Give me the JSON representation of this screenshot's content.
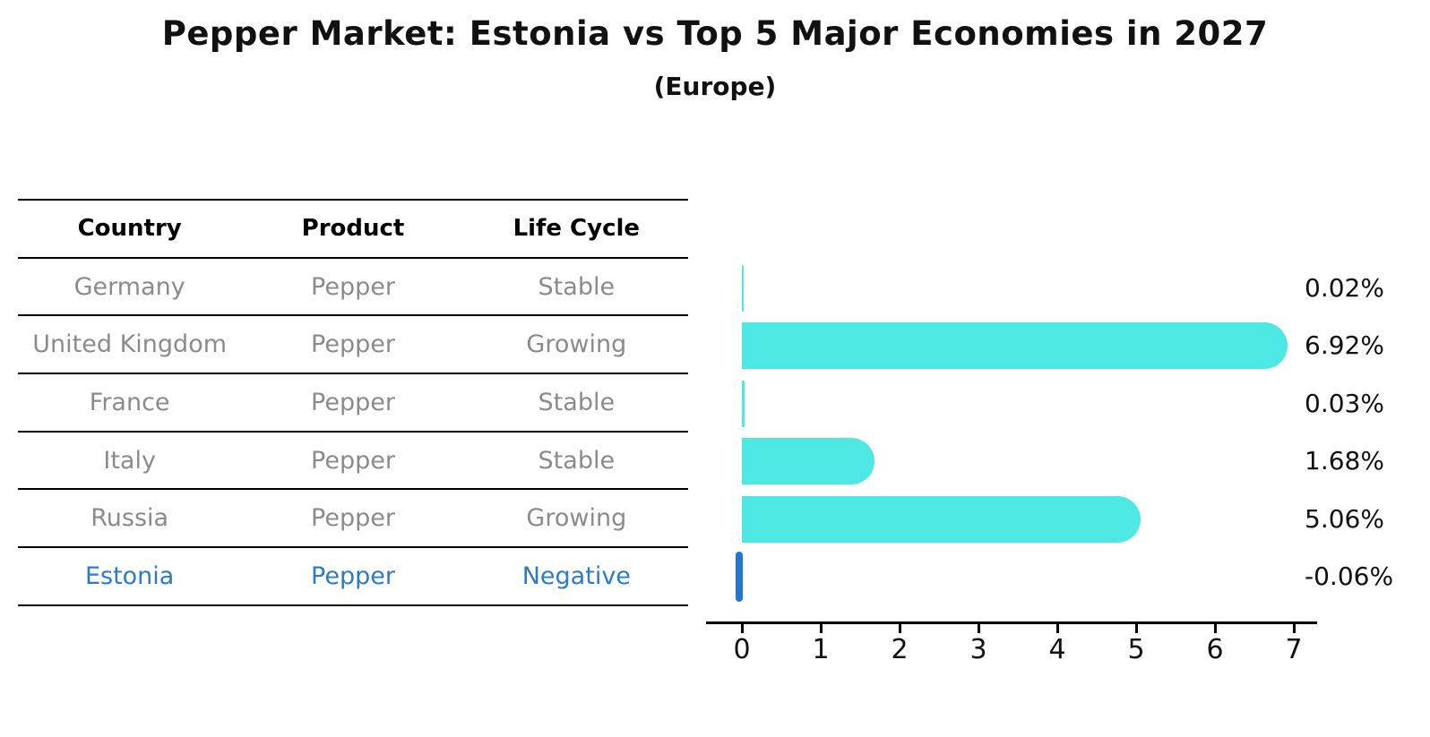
{
  "title": "Pepper Market: Estonia vs Top 5 Major Economies in 2027",
  "subtitle": "(Europe)",
  "table": {
    "headers": [
      "Country",
      "Product",
      "Life Cycle"
    ],
    "rows": [
      {
        "country": "Germany",
        "product": "Pepper",
        "life_cycle": "Stable"
      },
      {
        "country": "United Kingdom",
        "product": "Pepper",
        "life_cycle": "Growing"
      },
      {
        "country": "France",
        "product": "Pepper",
        "life_cycle": "Stable"
      },
      {
        "country": "Italy",
        "product": "Pepper",
        "life_cycle": "Stable"
      },
      {
        "country": "Russia",
        "product": "Pepper",
        "life_cycle": "Growing"
      },
      {
        "country": "Estonia",
        "product": "Pepper",
        "life_cycle": "Negative"
      }
    ]
  },
  "chart_data": {
    "type": "bar",
    "orientation": "horizontal",
    "categories": [
      "Germany",
      "United Kingdom",
      "France",
      "Italy",
      "Russia",
      "Estonia"
    ],
    "values": [
      0.02,
      6.92,
      0.03,
      1.68,
      5.06,
      -0.06
    ],
    "value_labels": [
      "0.02%",
      "6.92%",
      "0.03%",
      "1.68%",
      "5.06%",
      "-0.06%"
    ],
    "xticks": [
      0,
      1,
      2,
      3,
      4,
      5,
      6,
      7
    ],
    "xtick_labels": [
      "0",
      "1",
      "2",
      "3",
      "4",
      "5",
      "6",
      "7"
    ],
    "xlim": [
      -0.45,
      7.3
    ],
    "grid": false,
    "legend": "none",
    "bar_color": "#4de8e3",
    "highlight_color": "#2176d4",
    "highlight_index": 5
  },
  "colors": {
    "bar_cyan": "#4de8e3",
    "highlight_blue": "#2176d4",
    "highlight_text": "#2b7bca",
    "table_text_gray": "#8b8b8b",
    "text_black": "#111111"
  }
}
